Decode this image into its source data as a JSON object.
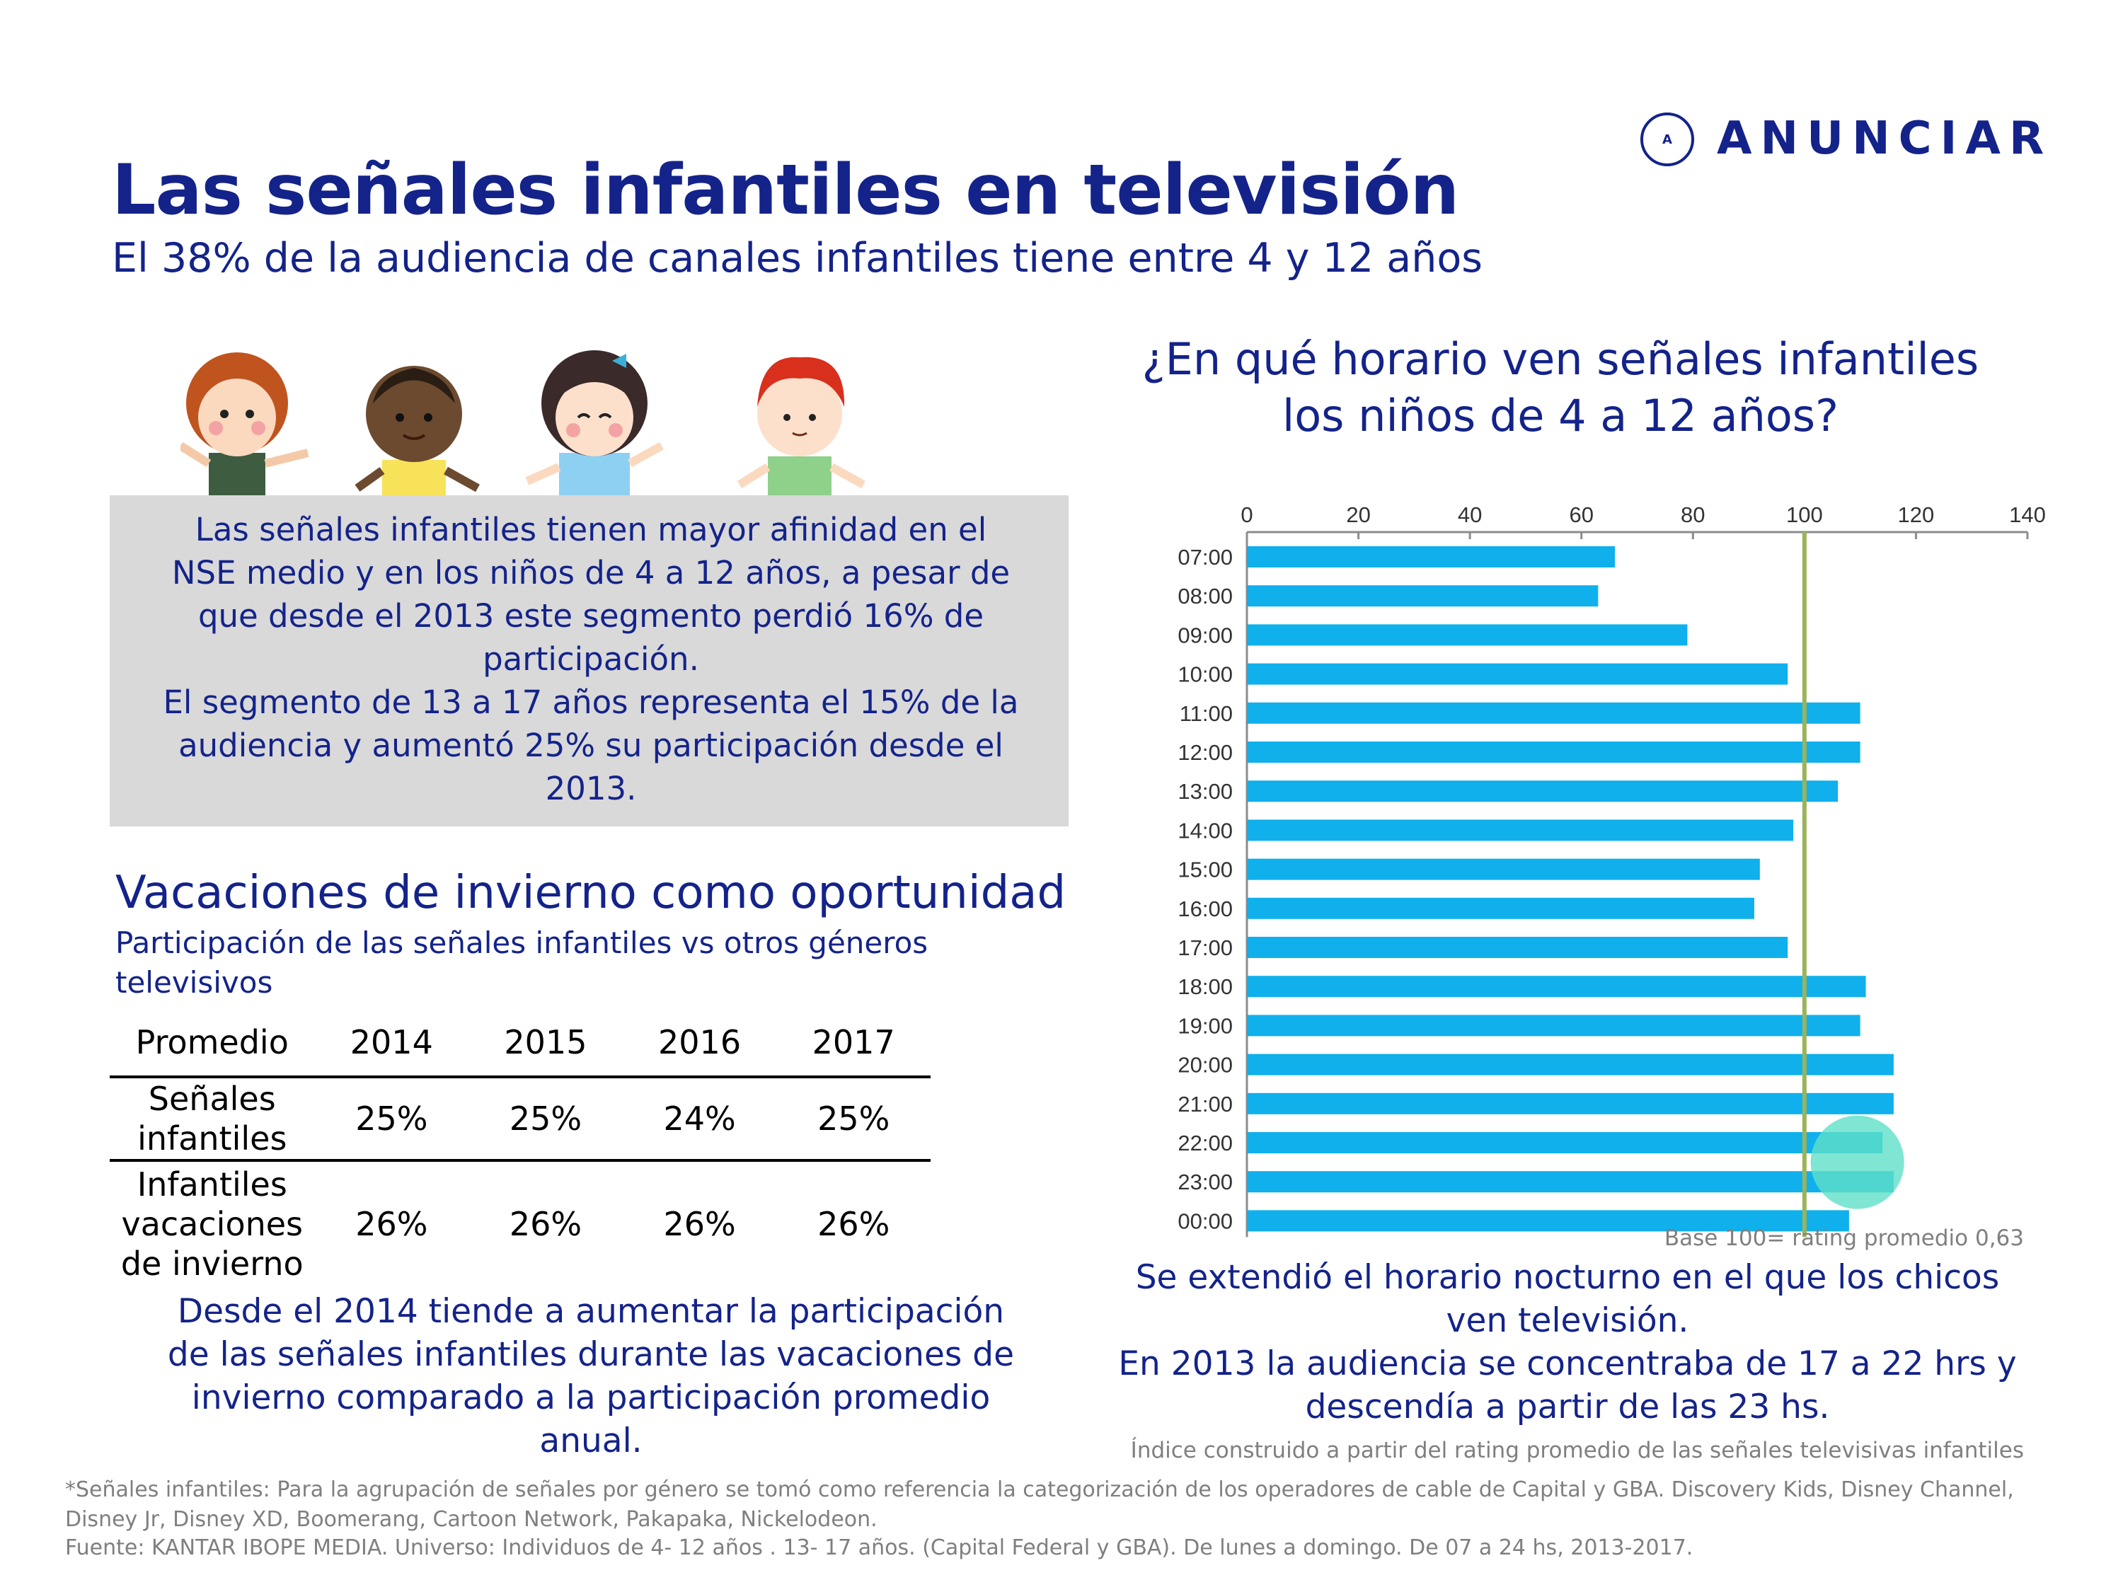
{
  "header": {
    "title": "Las señales infantiles en televisión",
    "subtitle": "El 38% de la audiencia de canales infantiles tiene entre 4 y 12 años",
    "logo_text": "ANUNCIAR",
    "logo_mark": "A"
  },
  "info_box": {
    "lines": [
      "Las señales infantiles tienen mayor afinidad en el",
      "NSE medio y en los niños de 4 a 12 años, a pesar de",
      "que desde el 2013 este segmento perdió 16% de",
      "participación.",
      "El segmento de 13 a 17 años representa el 15% de la",
      "audiencia y aumentó 25% su participación desde el",
      "2013."
    ]
  },
  "vacaciones": {
    "title": "Vacaciones de invierno como oportunidad",
    "subtitle": "Participación de las señales infantiles vs otros géneros televisivos",
    "table": {
      "headers": [
        "Promedio",
        "2014",
        "2015",
        "2016",
        "2017"
      ],
      "rows": [
        {
          "label_lines": [
            "Señales",
            "infantiles"
          ],
          "values": [
            "25%",
            "25%",
            "24%",
            "25%"
          ]
        },
        {
          "label_lines": [
            "Infantiles",
            "vacaciones",
            "de invierno"
          ],
          "values": [
            "26%",
            "26%",
            "26%",
            "26%"
          ]
        }
      ]
    },
    "note_lines": [
      "Desde el 2014 tiende a aumentar la participación",
      "de las señales infantiles durante las vacaciones de",
      "invierno comparado a la participación promedio",
      "anual."
    ]
  },
  "chart_section": {
    "title_lines": [
      "¿En qué horario ven señales infantiles",
      "los niños de  4 a 12 años?"
    ],
    "base_note": "Base 100= rating promedio 0,63",
    "note_lines": [
      "Se extendió el horario nocturno en el que los chicos",
      "ven televisión.",
      "En 2013 la audiencia se concentraba de 17 a 22 hrs y",
      "descendía a partir de las 23 hs."
    ],
    "indice_note": "Índice construido a partir del rating promedio de las señales televisivas infantiles"
  },
  "chart_data": {
    "type": "bar",
    "orientation": "horizontal",
    "categories": [
      "07:00",
      "08:00",
      "09:00",
      "10:00",
      "11:00",
      "12:00",
      "13:00",
      "14:00",
      "15:00",
      "16:00",
      "17:00",
      "18:00",
      "19:00",
      "20:00",
      "21:00",
      "22:00",
      "23:00",
      "00:00"
    ],
    "values": [
      66,
      63,
      79,
      97,
      110,
      110,
      106,
      98,
      92,
      91,
      97,
      111,
      110,
      116,
      116,
      114,
      116,
      108
    ],
    "xlim": [
      0,
      140
    ],
    "xticks": [
      0,
      20,
      40,
      60,
      80,
      100,
      120,
      140
    ],
    "reference_line": 100,
    "highlight_category": "22:00-23:00",
    "bar_color": "#0fb0ec",
    "reference_color": "#9bb35a",
    "highlight_color": "#5ee0c8",
    "grid": false,
    "legend": "none"
  },
  "footer": {
    "footnote": "*Señales infantiles: Para la agrupación de señales por género se tomó como referencia la categorización de los operadores de cable de Capital y GBA. Discovery Kids, Disney Channel, Disney Jr, Disney XD, Boomerang, Cartoon Network, Pakapaka, Nickelodeon.",
    "source": "Fuente: KANTAR IBOPE MEDIA. Universo: Individuos de 4- 12 años . 13- 17 años. (Capital Federal y GBA). De lunes a domingo. De  07 a 24 hs, 2013-2017."
  }
}
